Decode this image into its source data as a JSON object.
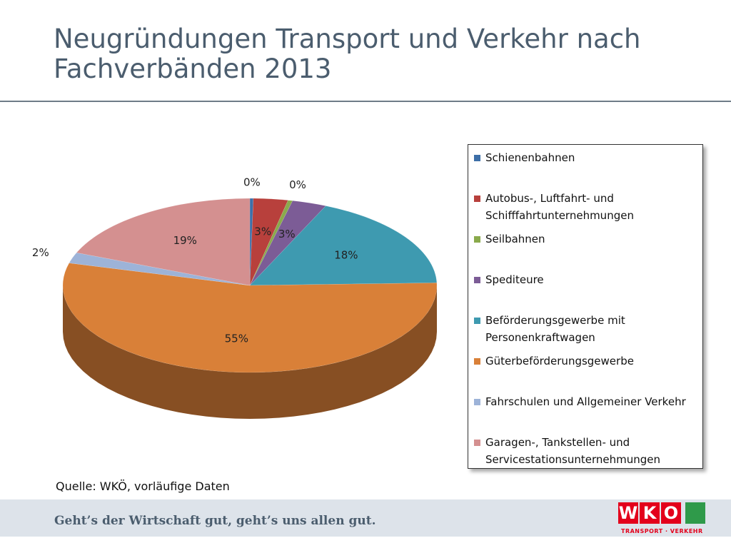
{
  "chart_data": {
    "type": "pie3d",
    "title": "Neugründungen Transport und Verkehr nach Fachverbänden 2013",
    "source": "Quelle: WKÖ, vorläufige Daten",
    "categories": [
      "Schienenbahnen",
      "Autobus-, Luftfahrt- und Schifffahrtunternehmungen",
      "Seilbahnen",
      "Spediteure",
      "Beförderungsgewerbe mit Personenkraftwagen",
      "Güterbeförderungsgewerbe",
      "Fahrschulen und Allgemeiner Verkehr",
      "Garagen-, Tankstellen- und Servicestationsunternehmungen"
    ],
    "values": [
      0.3,
      3,
      0.4,
      3,
      18,
      55,
      2,
      19
    ],
    "value_labels": [
      "0%",
      "3%",
      "0%",
      "3%",
      "18%",
      "55%",
      "2%",
      "19%"
    ],
    "colors": [
      "#3d6fa8",
      "#b8403c",
      "#8aaa4c",
      "#7c5c96",
      "#3e9ab0",
      "#d98038",
      "#9db3d8",
      "#d49090"
    ],
    "legend": "right"
  },
  "footer": {
    "slogan": "Geht’s der Wirtschaft gut, geht’s uns allen gut.",
    "logo_letters": [
      "W",
      "K",
      "O"
    ],
    "logo_tagline": "TRANSPORT · VERKEHR"
  }
}
